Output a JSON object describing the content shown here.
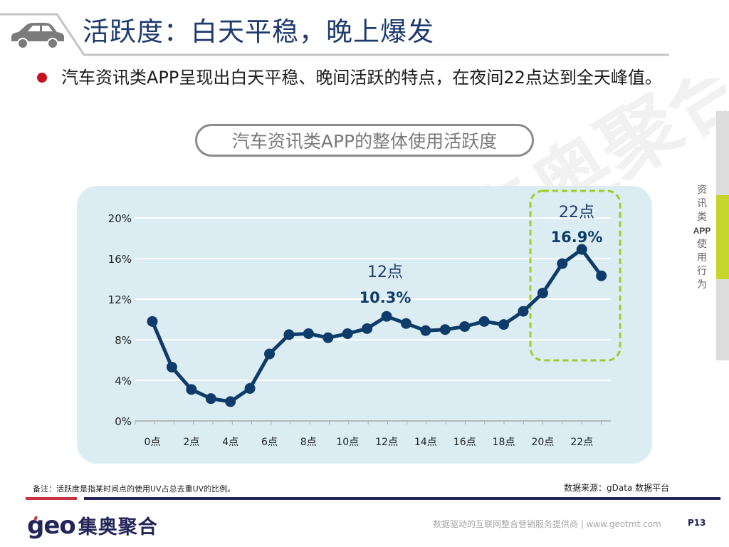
{
  "header": {
    "title": "活跃度：白天平稳，晚上爆发",
    "icon": "car-icon"
  },
  "bullet": {
    "text": "汽车资讯类APP呈现出白天平稳、晚间活跃的特点，在夜间22点达到全天峰值。"
  },
  "chart_title": "汽车资讯类APP的整体使用活跃度",
  "annotations": {
    "noon": {
      "label": "12点",
      "value": "10.3%"
    },
    "peak": {
      "label": "22点",
      "value": "16.9%"
    }
  },
  "side_tab": {
    "chars": [
      "资",
      "讯",
      "类",
      "APP",
      "使",
      "用",
      "行",
      "为"
    ]
  },
  "footer": {
    "note": "备注：活跃度是指某时间点的使用UV占总去重UV的比例。",
    "source": "数据来源：gData  数据平台",
    "logo_latin": "geo",
    "logo_cn": "集奥聚合",
    "tagline": "数据驱动的互联网整合营销服务提供商 | www.geotmt.com",
    "page": "P13"
  },
  "colors": {
    "line": "#0d3c6a",
    "panel_bg": "#dbedf3",
    "highlight_box": "#9ccc2e",
    "title_text": "#1f3a6e",
    "bullet_dot": "#c8101e",
    "side_accent": "#c5d52c",
    "footer_navy": "#232558",
    "footer_red": "#c8333f"
  },
  "chart_data": {
    "type": "line",
    "title": "汽车资讯类APP的整体使用活跃度",
    "xlabel": "",
    "ylabel": "",
    "x": [
      0,
      1,
      2,
      3,
      4,
      5,
      6,
      7,
      8,
      9,
      10,
      11,
      12,
      13,
      14,
      15,
      16,
      17,
      18,
      19,
      20,
      21,
      22,
      23
    ],
    "x_tick_labels": [
      "0点",
      "2点",
      "4点",
      "6点",
      "8点",
      "10点",
      "12点",
      "14点",
      "16点",
      "18点",
      "20点",
      "22点"
    ],
    "y_tick_labels": [
      "0%",
      "4%",
      "8%",
      "12%",
      "16%",
      "20%"
    ],
    "ylim": [
      0,
      20
    ],
    "grid": true,
    "legend": "none",
    "series": [
      {
        "name": "活跃度",
        "values": [
          9.8,
          5.3,
          3.1,
          2.2,
          1.9,
          3.2,
          6.6,
          8.5,
          8.6,
          8.2,
          8.6,
          9.1,
          10.3,
          9.6,
          8.9,
          9.0,
          9.3,
          9.8,
          9.5,
          10.8,
          12.6,
          15.5,
          16.9,
          14.3
        ]
      }
    ],
    "annotations": [
      {
        "x": 12,
        "text": "12点 10.3%"
      },
      {
        "x": 22,
        "text": "22点 16.9%",
        "highlight_box": "dashed green, x 20–23"
      }
    ]
  }
}
